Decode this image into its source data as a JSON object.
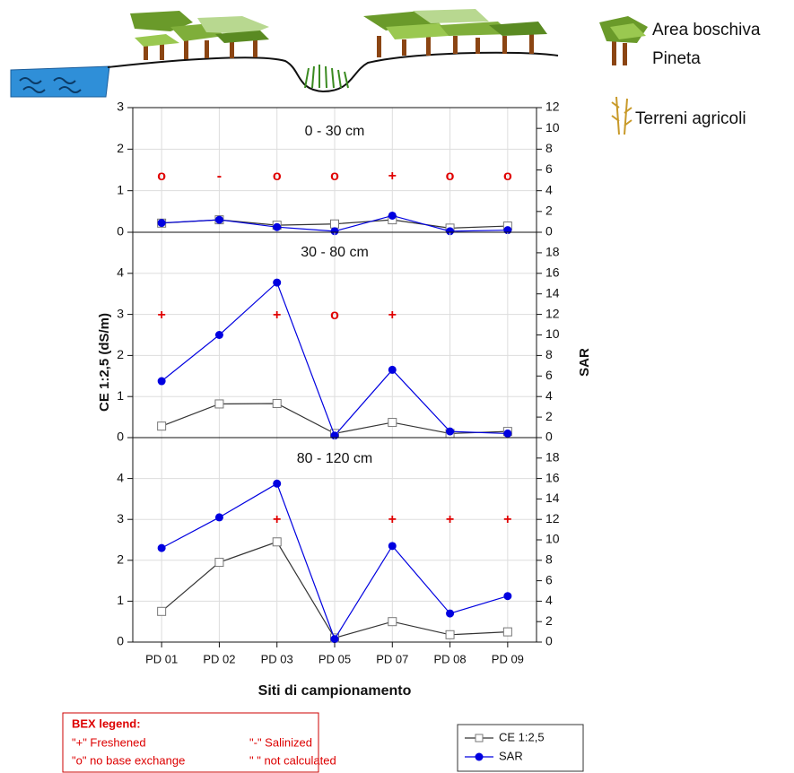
{
  "chart_data": {
    "type": "line",
    "categories": [
      "PD 01",
      "PD 02",
      "PD 03",
      "PD 05",
      "PD 07",
      "PD 08",
      "PD 09"
    ],
    "x_label": "Siti di campionamento",
    "y_label": "CE 1:2,5 (dS/m)",
    "y2_label": "SAR",
    "grid": true,
    "series": [
      {
        "name": "CE 1:2,5",
        "color": "#333333",
        "marker": "square",
        "axis": "y"
      },
      {
        "name": "SAR",
        "color": "#0000e0",
        "marker": "circle",
        "axis": "y2"
      }
    ],
    "panels": [
      {
        "title": "0 - 30 cm",
        "ylim": [
          0,
          3
        ],
        "yticks": [
          0,
          1,
          2,
          3
        ],
        "y2lim": [
          0,
          12
        ],
        "y2ticks": [
          0,
          2,
          4,
          6,
          8,
          10,
          12
        ],
        "values": [
          [
            0.22,
            0.3,
            0.17,
            0.2,
            0.3,
            0.1,
            0.15
          ],
          [
            0.9,
            1.2,
            0.5,
            0.1,
            1.6,
            0.1,
            0.2
          ]
        ],
        "bex": [
          "o",
          "-",
          "o",
          "o",
          "+",
          "o",
          "o"
        ]
      },
      {
        "title": "30 - 80 cm",
        "ylim": [
          0,
          5
        ],
        "yticks": [
          0,
          1,
          2,
          3,
          4
        ],
        "y2lim": [
          0,
          20
        ],
        "y2ticks": [
          0,
          2,
          4,
          6,
          8,
          10,
          12,
          14,
          16,
          18
        ],
        "values": [
          [
            0.28,
            0.82,
            0.83,
            0.1,
            0.37,
            0.1,
            0.15
          ],
          [
            5.5,
            10,
            15.1,
            0.2,
            6.6,
            0.6,
            0.4
          ]
        ],
        "bex": [
          "+",
          null,
          "+",
          "o",
          "+",
          null,
          null
        ]
      },
      {
        "title": "80 - 120 cm",
        "ylim": [
          0,
          5
        ],
        "yticks": [
          0,
          1,
          2,
          3,
          4
        ],
        "y2lim": [
          0,
          20
        ],
        "y2ticks": [
          0,
          2,
          4,
          6,
          8,
          10,
          12,
          14,
          16,
          18
        ],
        "values": [
          [
            0.75,
            1.95,
            2.45,
            0.1,
            0.5,
            0.18,
            0.25
          ],
          [
            9.2,
            12.2,
            15.5,
            0.3,
            9.4,
            2.8,
            4.5
          ]
        ],
        "bex": [
          null,
          null,
          "+",
          null,
          "+",
          "+",
          "+"
        ]
      }
    ]
  },
  "illustration": {
    "legend": [
      "Area boschiva",
      "Pineta",
      "Terreni agricoli"
    ]
  },
  "bex_legend": {
    "title": "BEX legend:",
    "items": [
      "\"+\" Freshened",
      "\"-\" Salinized",
      "\"o\" no base exchange",
      "\" \" not calculated"
    ]
  }
}
